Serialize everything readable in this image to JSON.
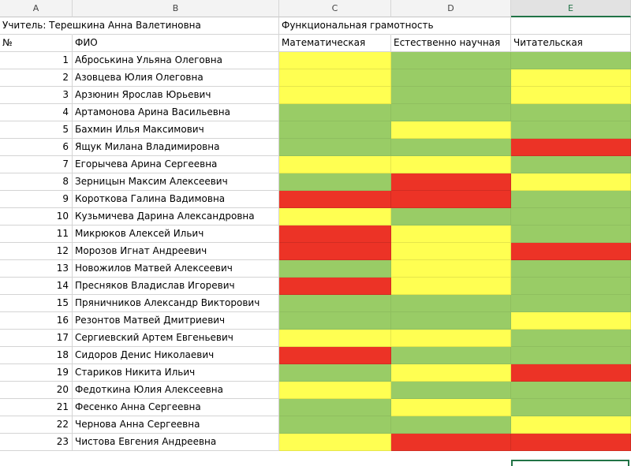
{
  "columns": [
    "A",
    "B",
    "C",
    "D",
    "E"
  ],
  "header": {
    "teacher": "Учитель: Терешкина Анна Валетиновна",
    "group": "Функциональная грамотность",
    "num_label": "№",
    "name_label": "ФИО",
    "math": "Математическая",
    "science": "Естественно научная",
    "reading": "Читательская"
  },
  "colors": {
    "y": "#ffff52",
    "g": "#99cc66",
    "r": "#ec3326"
  },
  "students": [
    {
      "n": "1",
      "name": "Аброськина Ульяна Олеговна",
      "c": "y",
      "d": "g",
      "e": "g"
    },
    {
      "n": "2",
      "name": "Азовцева Юлия Олеговна",
      "c": "y",
      "d": "g",
      "e": "y"
    },
    {
      "n": "3",
      "name": "Арзюнин Ярослав Юрьевич",
      "c": "y",
      "d": "g",
      "e": "y"
    },
    {
      "n": "4",
      "name": "Артамонова Арина Васильевна",
      "c": "g",
      "d": "g",
      "e": "g"
    },
    {
      "n": "5",
      "name": "Бахмин Илья Максимович",
      "c": "g",
      "d": "y",
      "e": "g"
    },
    {
      "n": "6",
      "name": "Ящук Милана Владимировна",
      "c": "g",
      "d": "g",
      "e": "r"
    },
    {
      "n": "7",
      "name": "Егорычева Арина Сергеевна",
      "c": "y",
      "d": "y",
      "e": "g"
    },
    {
      "n": "8",
      "name": "Зерницын Максим Алексеевич",
      "c": "g",
      "d": "r",
      "e": "y"
    },
    {
      "n": "9",
      "name": "Короткова Галина Вадимовна",
      "c": "r",
      "d": "r",
      "e": "g"
    },
    {
      "n": "10",
      "name": "Кузьмичева Дарина Александровна",
      "c": "y",
      "d": "g",
      "e": "g"
    },
    {
      "n": "11",
      "name": "Микрюков Алексей Ильич",
      "c": "r",
      "d": "y",
      "e": "g"
    },
    {
      "n": "12",
      "name": "Морозов Игнат Андреевич",
      "c": "r",
      "d": "y",
      "e": "r"
    },
    {
      "n": "13",
      "name": "Новожилов Матвей Алексеевич",
      "c": "g",
      "d": "y",
      "e": "g"
    },
    {
      "n": "14",
      "name": "Пресняков Владислав Игоревич",
      "c": "r",
      "d": "y",
      "e": "g"
    },
    {
      "n": "15",
      "name": "Пряничников Александр Викторович",
      "c": "g",
      "d": "g",
      "e": "g"
    },
    {
      "n": "16",
      "name": "Резонтов Матвей Дмитриевич",
      "c": "g",
      "d": "g",
      "e": "y"
    },
    {
      "n": "17",
      "name": "Сергиевский Артем Евгеньевич",
      "c": "y",
      "d": "y",
      "e": "g"
    },
    {
      "n": "18",
      "name": "Сидоров Денис Николаевич",
      "c": "r",
      "d": "g",
      "e": "g"
    },
    {
      "n": "19",
      "name": "Стариков Никита Ильич",
      "c": "g",
      "d": "y",
      "e": "r"
    },
    {
      "n": "20",
      "name": "Федоткина Юлия Алексеевна",
      "c": "y",
      "d": "g",
      "e": "g"
    },
    {
      "n": "21",
      "name": "Фесенко Анна Сергеевна",
      "c": "g",
      "d": "y",
      "e": "g"
    },
    {
      "n": "22",
      "name": "Чернова Анна Сергеевна",
      "c": "g",
      "d": "g",
      "e": "y"
    },
    {
      "n": "23",
      "name": "Чистова Евгения Андреевна",
      "c": "y",
      "d": "r",
      "e": "r"
    }
  ]
}
